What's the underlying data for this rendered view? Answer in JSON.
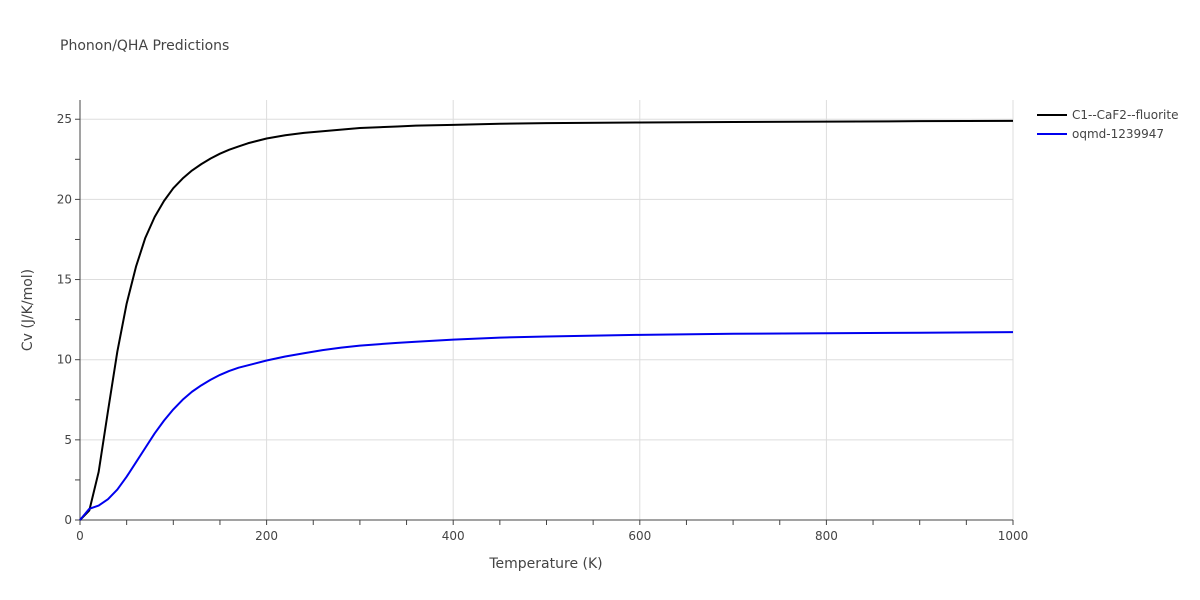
{
  "chart_data": {
    "type": "line",
    "title": "Phonon/QHA Predictions",
    "xlabel": "Temperature (K)",
    "ylabel": "Cv (J/K/mol)",
    "xlim": [
      0,
      1000
    ],
    "ylim": [
      0,
      26.2
    ],
    "xticks": [
      0,
      200,
      400,
      600,
      800,
      1000
    ],
    "xtick_labels": [
      "0",
      "200",
      "400",
      "600",
      "800",
      "1000"
    ],
    "yticks": [
      0,
      5,
      10,
      15,
      20,
      25
    ],
    "ytick_labels": [
      "0",
      "5",
      "10",
      "15",
      "20",
      "25"
    ],
    "grid": true,
    "legend_position": "top-right",
    "series": [
      {
        "name": "C1--CaF2--fluorite",
        "color": "#000000",
        "x": [
          0,
          10,
          20,
          30,
          40,
          50,
          60,
          70,
          80,
          90,
          100,
          110,
          120,
          130,
          140,
          150,
          160,
          170,
          180,
          200,
          220,
          240,
          260,
          280,
          300,
          340,
          360,
          400,
          450,
          500,
          600,
          700,
          800,
          900,
          1000
        ],
        "y": [
          0,
          0.6,
          3.0,
          6.8,
          10.5,
          13.5,
          15.8,
          17.6,
          18.9,
          19.9,
          20.7,
          21.3,
          21.8,
          22.2,
          22.55,
          22.85,
          23.1,
          23.3,
          23.5,
          23.8,
          24.0,
          24.15,
          24.25,
          24.35,
          24.45,
          24.55,
          24.6,
          24.65,
          24.72,
          24.76,
          24.8,
          24.83,
          24.85,
          24.88,
          24.9
        ]
      },
      {
        "name": "oqmd-1239947",
        "color": "#0000ee",
        "x": [
          0,
          10,
          20,
          30,
          40,
          50,
          60,
          70,
          80,
          90,
          100,
          110,
          120,
          130,
          140,
          150,
          160,
          170,
          180,
          200,
          220,
          240,
          260,
          280,
          300,
          340,
          360,
          400,
          450,
          500,
          600,
          700,
          800,
          900,
          1000
        ],
        "y": [
          0,
          0.7,
          0.9,
          1.3,
          1.9,
          2.7,
          3.6,
          4.5,
          5.4,
          6.2,
          6.9,
          7.5,
          8.0,
          8.4,
          8.75,
          9.05,
          9.3,
          9.5,
          9.65,
          9.95,
          10.2,
          10.4,
          10.6,
          10.75,
          10.88,
          11.05,
          11.12,
          11.25,
          11.38,
          11.45,
          11.55,
          11.62,
          11.65,
          11.68,
          11.72
        ]
      }
    ]
  }
}
